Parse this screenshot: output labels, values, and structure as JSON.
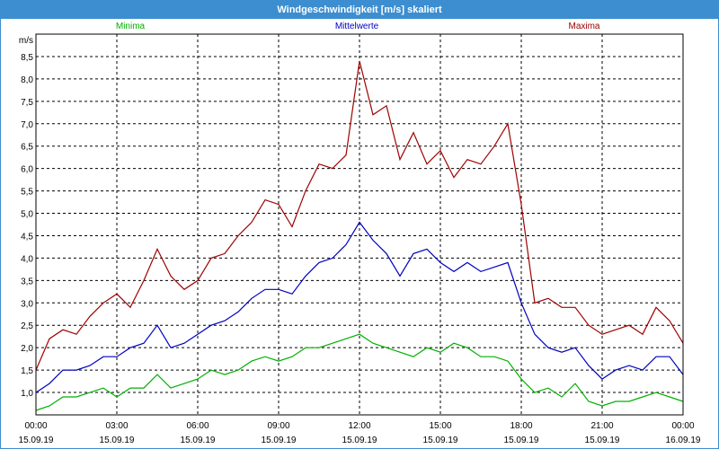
{
  "window": {
    "title": "Windgeschwindigkeit [m/s] skaliert"
  },
  "colors": {
    "titlebar": "#3c8ed0",
    "minima": "#00b000",
    "mittel": "#0000c0",
    "maxima": "#a00000"
  },
  "chart_data": {
    "type": "line",
    "title": "Windgeschwindigkeit [m/s] skaliert",
    "ylabel": "m/s",
    "ylim": [
      0.5,
      9.0
    ],
    "yticks": [
      1.0,
      1.5,
      2.0,
      2.5,
      3.0,
      3.5,
      4.0,
      4.5,
      5.0,
      5.5,
      6.0,
      6.5,
      7.0,
      7.5,
      8.0,
      8.5
    ],
    "ytick_labels": [
      "1,0",
      "1,5",
      "2,0",
      "2,5",
      "3,0",
      "3,5",
      "4,0",
      "4,5",
      "5,0",
      "5,5",
      "6,0",
      "6,5",
      "7,0",
      "7,5",
      "8,0",
      "8,5"
    ],
    "xlim_hours": [
      0,
      24
    ],
    "xticks": [
      {
        "h": 0,
        "time": "00:00",
        "date": "15.09.19"
      },
      {
        "h": 3,
        "time": "03:00",
        "date": "15.09.19"
      },
      {
        "h": 6,
        "time": "06:00",
        "date": "15.09.19"
      },
      {
        "h": 9,
        "time": "09:00",
        "date": "15.09.19"
      },
      {
        "h": 12,
        "time": "12:00",
        "date": "15.09.19"
      },
      {
        "h": 15,
        "time": "15:00",
        "date": "15.09.19"
      },
      {
        "h": 18,
        "time": "18:00",
        "date": "15.09.19"
      },
      {
        "h": 21,
        "time": "21:00",
        "date": "15.09.19"
      },
      {
        "h": 24,
        "time": "00:00",
        "date": "16.09.19"
      }
    ],
    "grid": true,
    "legend": [
      "Minima",
      "Mittelwerte",
      "Maxima"
    ],
    "series": [
      {
        "name": "Minima",
        "color": "#00b000",
        "x": [
          0,
          0.5,
          1,
          1.5,
          2,
          2.5,
          3,
          3.5,
          4,
          4.5,
          5,
          5.5,
          6,
          6.5,
          7,
          7.5,
          8,
          8.5,
          9,
          9.5,
          10,
          10.5,
          11,
          11.5,
          12,
          12.5,
          13,
          13.5,
          14,
          14.5,
          15,
          15.5,
          16,
          16.5,
          17,
          17.5,
          18,
          18.5,
          19,
          19.5,
          20,
          20.5,
          21,
          21.5,
          22,
          22.5,
          23,
          23.5,
          24
        ],
        "values": [
          0.6,
          0.7,
          0.9,
          0.9,
          1.0,
          1.1,
          0.9,
          1.1,
          1.1,
          1.4,
          1.1,
          1.2,
          1.3,
          1.5,
          1.4,
          1.5,
          1.7,
          1.8,
          1.7,
          1.8,
          2.0,
          2.0,
          2.1,
          2.2,
          2.3,
          2.1,
          2.0,
          1.9,
          1.8,
          2.0,
          1.9,
          2.1,
          2.0,
          1.8,
          1.8,
          1.7,
          1.3,
          1.0,
          1.1,
          0.9,
          1.2,
          0.8,
          0.7,
          0.8,
          0.8,
          0.9,
          1.0,
          0.9,
          0.8
        ]
      },
      {
        "name": "Mittelwerte",
        "color": "#0000c0",
        "x": [
          0,
          0.5,
          1,
          1.5,
          2,
          2.5,
          3,
          3.5,
          4,
          4.5,
          5,
          5.5,
          6,
          6.5,
          7,
          7.5,
          8,
          8.5,
          9,
          9.5,
          10,
          10.5,
          11,
          11.5,
          12,
          12.5,
          13,
          13.5,
          14,
          14.5,
          15,
          15.5,
          16,
          16.5,
          17,
          17.5,
          18,
          18.5,
          19,
          19.5,
          20,
          20.5,
          21,
          21.5,
          22,
          22.5,
          23,
          23.5,
          24
        ],
        "values": [
          1.0,
          1.2,
          1.5,
          1.5,
          1.6,
          1.8,
          1.8,
          2.0,
          2.1,
          2.5,
          2.0,
          2.1,
          2.3,
          2.5,
          2.6,
          2.8,
          3.1,
          3.3,
          3.3,
          3.2,
          3.6,
          3.9,
          4.0,
          4.3,
          4.8,
          4.4,
          4.1,
          3.6,
          4.1,
          4.2,
          3.9,
          3.7,
          3.9,
          3.7,
          3.8,
          3.9,
          3.0,
          2.3,
          2.0,
          1.9,
          2.0,
          1.6,
          1.3,
          1.5,
          1.6,
          1.5,
          1.8,
          1.8,
          1.4
        ]
      },
      {
        "name": "Maxima",
        "color": "#a00000",
        "x": [
          0,
          0.5,
          1,
          1.5,
          2,
          2.5,
          3,
          3.5,
          4,
          4.5,
          5,
          5.5,
          6,
          6.5,
          7,
          7.5,
          8,
          8.5,
          9,
          9.5,
          10,
          10.5,
          11,
          11.5,
          12,
          12.5,
          13,
          13.5,
          14,
          14.5,
          15,
          15.5,
          16,
          16.5,
          17,
          17.5,
          18,
          18.5,
          19,
          19.5,
          20,
          20.5,
          21,
          21.5,
          22,
          22.5,
          23,
          23.5,
          24
        ],
        "values": [
          1.5,
          2.2,
          2.4,
          2.3,
          2.7,
          3.0,
          3.2,
          2.9,
          3.5,
          4.2,
          3.6,
          3.3,
          3.5,
          4.0,
          4.1,
          4.5,
          4.8,
          5.3,
          5.2,
          4.7,
          5.5,
          6.1,
          6.0,
          6.3,
          8.4,
          7.2,
          7.4,
          6.2,
          6.8,
          6.1,
          6.4,
          5.8,
          6.2,
          6.1,
          6.5,
          7.0,
          5.2,
          3.0,
          3.1,
          2.9,
          2.9,
          2.5,
          2.3,
          2.4,
          2.5,
          2.3,
          2.9,
          2.6,
          2.1
        ]
      }
    ]
  }
}
